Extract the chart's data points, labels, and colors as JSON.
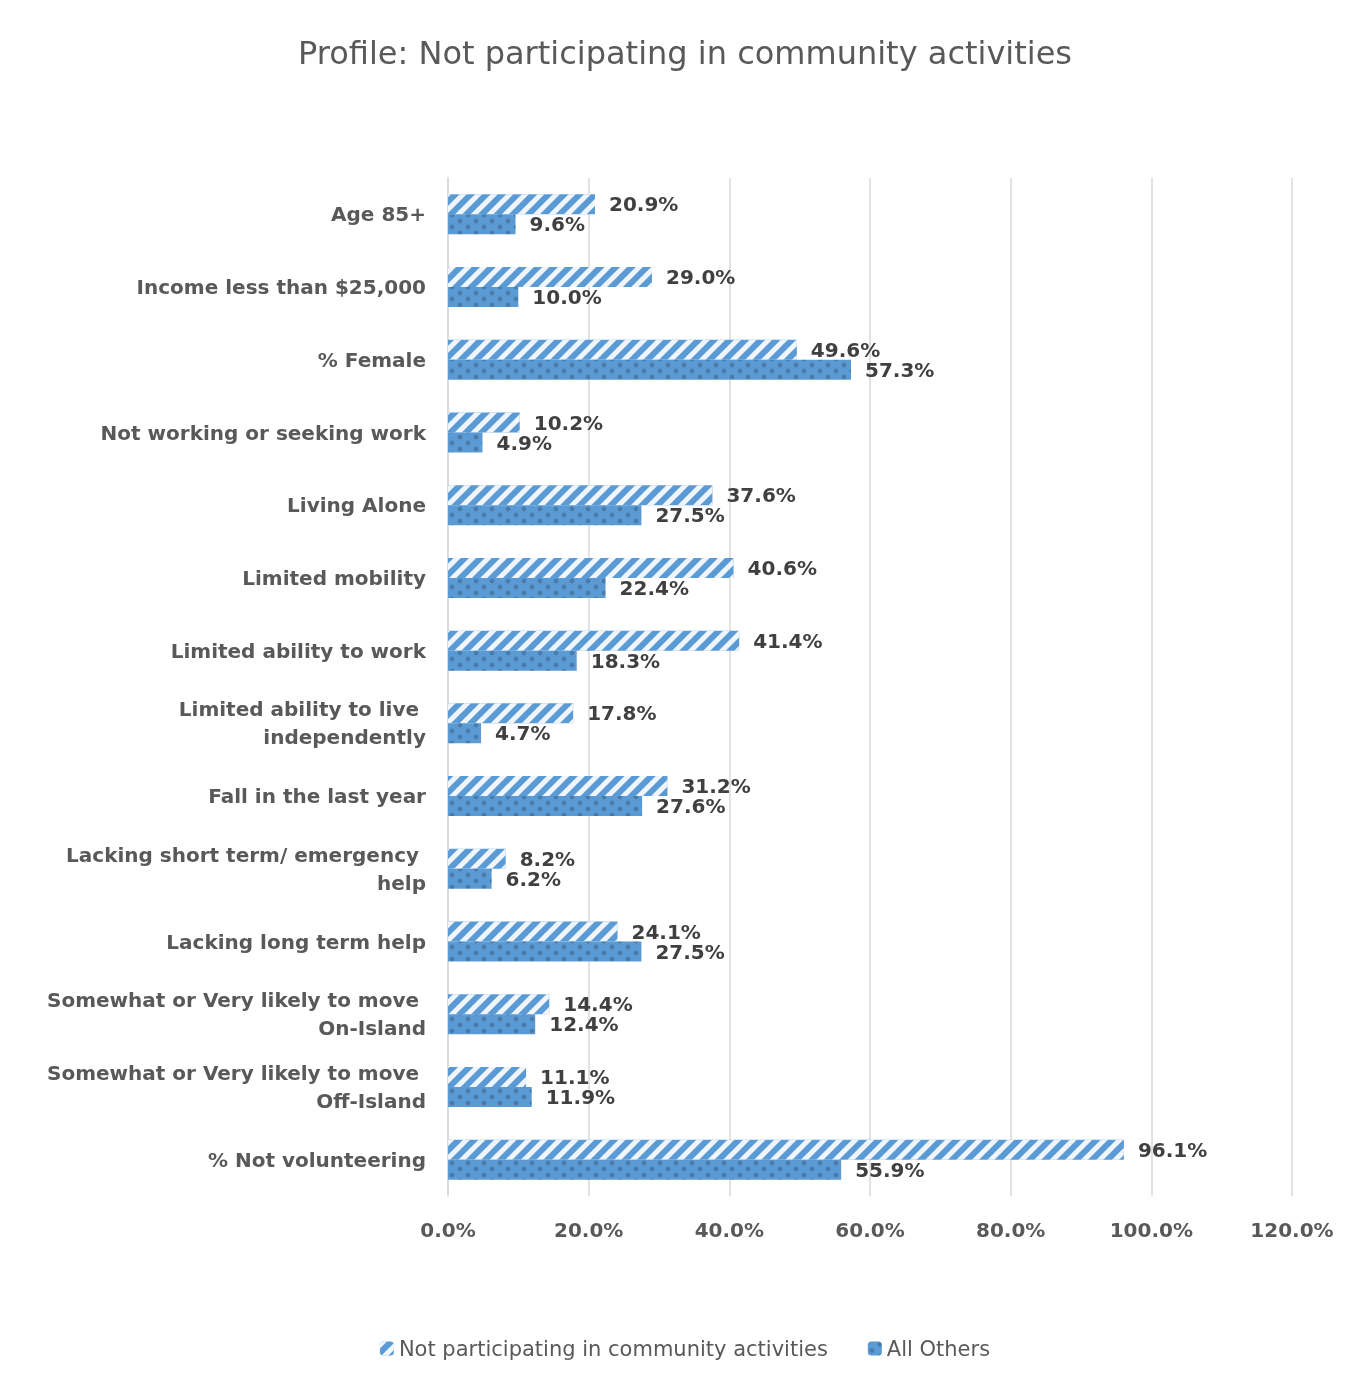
{
  "chart_data": {
    "type": "bar",
    "orientation": "horizontal",
    "title": "Profile: Not participating in community activities",
    "categories": [
      "Age 85+",
      "Income less than $25,000",
      "% Female",
      "Not working or seeking work",
      "Living Alone",
      "Limited mobility",
      "Limited ability to work",
      "Limited ability to live independently",
      "Fall in the last year",
      "Lacking short term/ emergency help",
      "Lacking long term help",
      "Somewhat or Very likely to move On-Island",
      "Somewhat or Very likely to move Off-Island",
      "% Not volunteering"
    ],
    "series": [
      {
        "name": "Not participating in community activities",
        "color": "#5b9bd5",
        "values": [
          20.9,
          29.0,
          49.6,
          10.2,
          37.6,
          40.6,
          41.4,
          17.8,
          31.2,
          8.2,
          24.1,
          14.4,
          11.1,
          96.1
        ],
        "value_labels": [
          "20.9%",
          "29.0%",
          "49.6%",
          "10.2%",
          "37.6%",
          "40.6%",
          "41.4%",
          "17.8%",
          "31.2%",
          "8.2%",
          "24.1%",
          "14.4%",
          "11.1%",
          "96.1%"
        ]
      },
      {
        "name": "All Others",
        "color": "#5b9bd5",
        "values": [
          9.6,
          10.0,
          57.3,
          4.9,
          27.5,
          22.4,
          18.3,
          4.7,
          27.6,
          6.2,
          27.5,
          12.4,
          11.9,
          55.9
        ],
        "value_labels": [
          "9.6%",
          "10.0%",
          "57.3%",
          "4.9%",
          "27.5%",
          "22.4%",
          "18.3%",
          "4.7%",
          "27.6%",
          "6.2%",
          "27.5%",
          "12.4%",
          "11.9%",
          "55.9%"
        ]
      }
    ],
    "xlim": [
      0,
      120
    ],
    "xticks": [
      {
        "value": 0,
        "label": "0.0%"
      },
      {
        "value": 20,
        "label": "20.0%"
      },
      {
        "value": 40,
        "label": "40.0%"
      },
      {
        "value": 60,
        "label": "60.0%"
      },
      {
        "value": 80,
        "label": "80.0%"
      },
      {
        "value": 100,
        "label": "100.0%"
      },
      {
        "value": 120,
        "label": "120.0%"
      }
    ],
    "grid": "x",
    "legend": "bottom"
  }
}
